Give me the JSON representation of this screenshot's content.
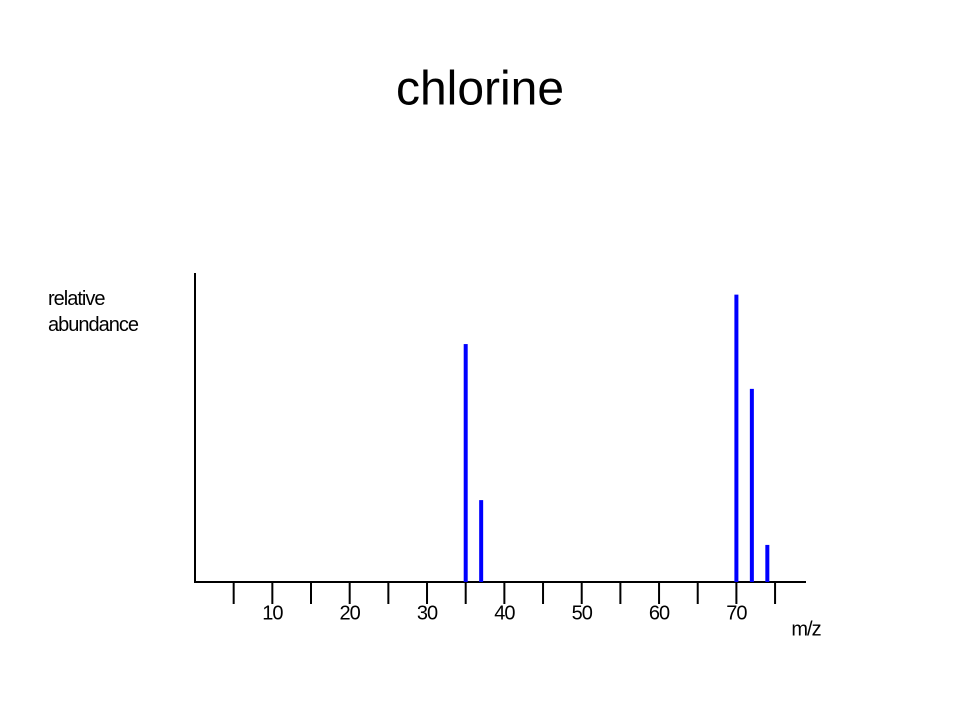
{
  "chart_data": {
    "type": "bar",
    "title": "chlorine",
    "ylabel": "relative abundance",
    "xlabel": "m/z",
    "x": [
      35,
      37,
      70,
      72,
      74
    ],
    "values": [
      77,
      26.5,
      93,
      62.5,
      12
    ],
    "color": "#0000ff",
    "xlim": [
      0,
      79
    ],
    "xticks": [
      10,
      20,
      30,
      40,
      50,
      60,
      70
    ],
    "xminor_ticks": [
      5,
      15,
      25,
      35,
      45,
      55,
      65,
      75
    ],
    "ylim": [
      0,
      100
    ]
  }
}
